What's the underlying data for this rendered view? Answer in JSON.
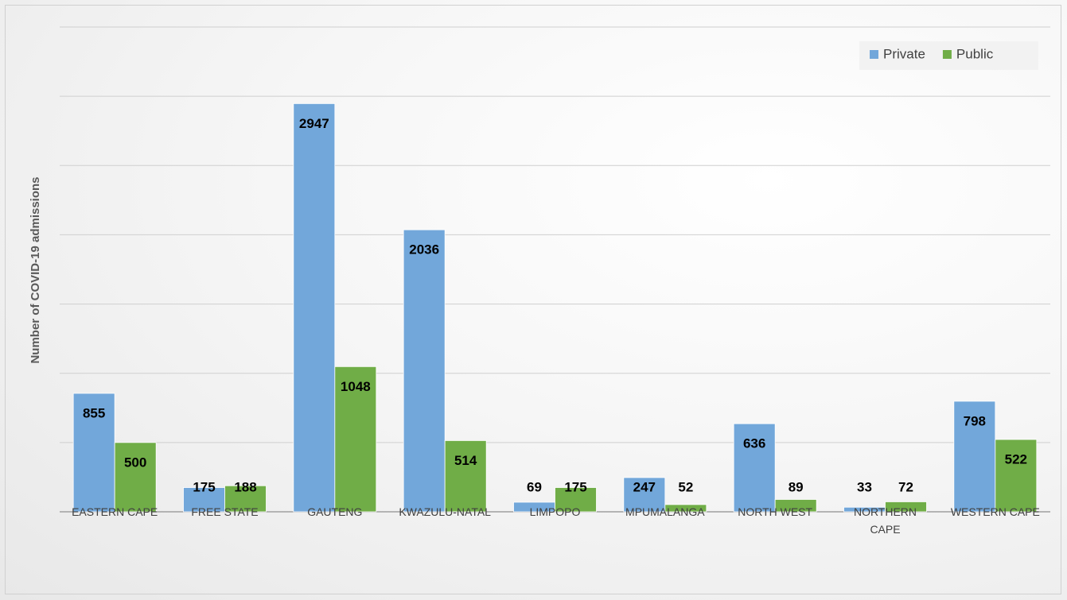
{
  "chart_data": {
    "type": "bar",
    "y_label": "Number of COVID-19 admissions",
    "categories": [
      "EASTERN CAPE",
      "FREE STATE",
      "GAUTENG",
      "KWAZULU-NATAL",
      "LIMPOPO",
      "MPUMALANGA",
      "NORTH WEST",
      "NORTHERN CAPE",
      "WESTERN CAPE"
    ],
    "series": [
      {
        "name": "Private",
        "color": "#72a7da",
        "values": [
          855,
          175,
          2947,
          2036,
          69,
          247,
          636,
          33,
          798
        ]
      },
      {
        "name": "Public",
        "color": "#70ad47",
        "values": [
          500,
          188,
          1048,
          514,
          175,
          52,
          89,
          72,
          522
        ]
      }
    ],
    "ylim": [
      0,
      3500
    ],
    "yticks": [
      0,
      500,
      1000,
      1500,
      2000,
      2500,
      3000,
      3500
    ],
    "grid": true,
    "legend": "top-right"
  }
}
